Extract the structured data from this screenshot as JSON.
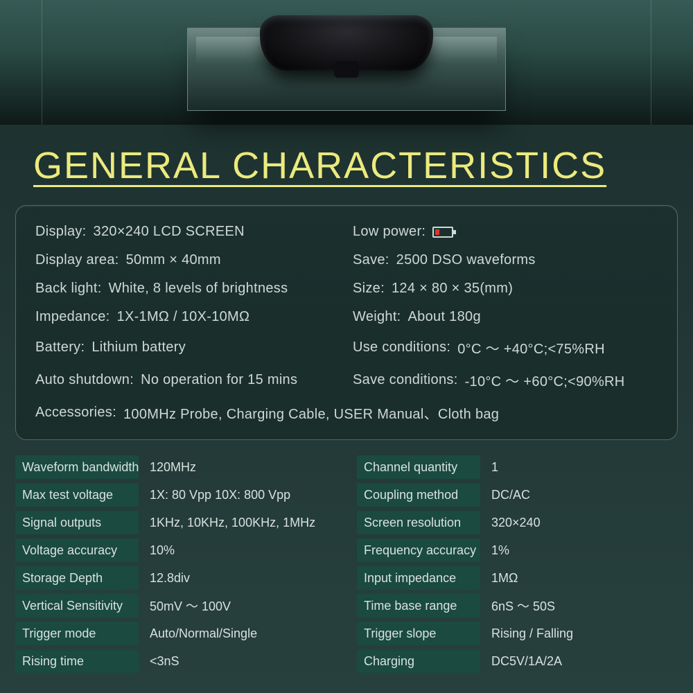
{
  "title": "GENERAL CHARACTERISTICS",
  "colors": {
    "accent_yellow": "#ecea7e",
    "cell_bg": "#1a4a40",
    "text": "#cfd9d6",
    "panel_border": "#4e6e68",
    "battery_low": "#d63a2e"
  },
  "general": {
    "display_label": "Display:",
    "display_value": "320×240  LCD SCREEN",
    "low_power_label": "Low power:",
    "display_area_label": "Display area:",
    "display_area_value": "50mm × 40mm",
    "save_label": "Save:",
    "save_value": "2500 DSO waveforms",
    "backlight_label": "Back light:",
    "backlight_value": "White, 8 levels of brightness",
    "size_label": "Size:",
    "size_value": "124 × 80 × 35(mm)",
    "impedance_label": "Impedance:",
    "impedance_value": "1X-1MΩ / 10X-10MΩ",
    "weight_label": "Weight:",
    "weight_value": "About 180g",
    "battery_label": "Battery:",
    "battery_value": "Lithium battery",
    "use_cond_label": "Use conditions:",
    "use_cond_value": "0°C ～ +40°C;<75%RH",
    "auto_label": "Auto shutdown:",
    "auto_value": "No operation for 15 mins",
    "save_cond_label": "Save conditions:",
    "save_cond_value": "-10°C ～ +60°C;<90%RH",
    "acc_label": "Accessories:",
    "acc_value": "100MHz Probe, Charging Cable, USER Manual、Cloth bag"
  },
  "specs_left": [
    {
      "label": "Waveform bandwidth",
      "value": "120MHz"
    },
    {
      "label": "Max test voltage",
      "value": "1X: 80 Vpp 10X: 800 Vpp"
    },
    {
      "label": "Signal outputs",
      "value": "1KHz, 10KHz, 100KHz, 1MHz"
    },
    {
      "label": "Voltage accuracy",
      "value": "10%"
    },
    {
      "label": "Storage Depth",
      "value": "12.8div"
    },
    {
      "label": "Vertical Sensitivity",
      "value": "50mV ～ 100V"
    },
    {
      "label": "Trigger mode",
      "value": "Auto/Normal/Single"
    },
    {
      "label": "Rising time",
      "value": "<3nS"
    }
  ],
  "specs_right": [
    {
      "label": "Channel quantity",
      "value": "1"
    },
    {
      "label": "Coupling method",
      "value": "DC/AC"
    },
    {
      "label": "Screen resolution",
      "value": "320×240"
    },
    {
      "label": "Frequency accuracy",
      "value": "1%"
    },
    {
      "label": "Input impedance",
      "value": "1MΩ"
    },
    {
      "label": "Time base range",
      "value": "6nS ～ 50S"
    },
    {
      "label": "Trigger slope",
      "value": "Rising / Falling"
    },
    {
      "label": "Charging",
      "value": "DC5V/1A/2A"
    }
  ]
}
